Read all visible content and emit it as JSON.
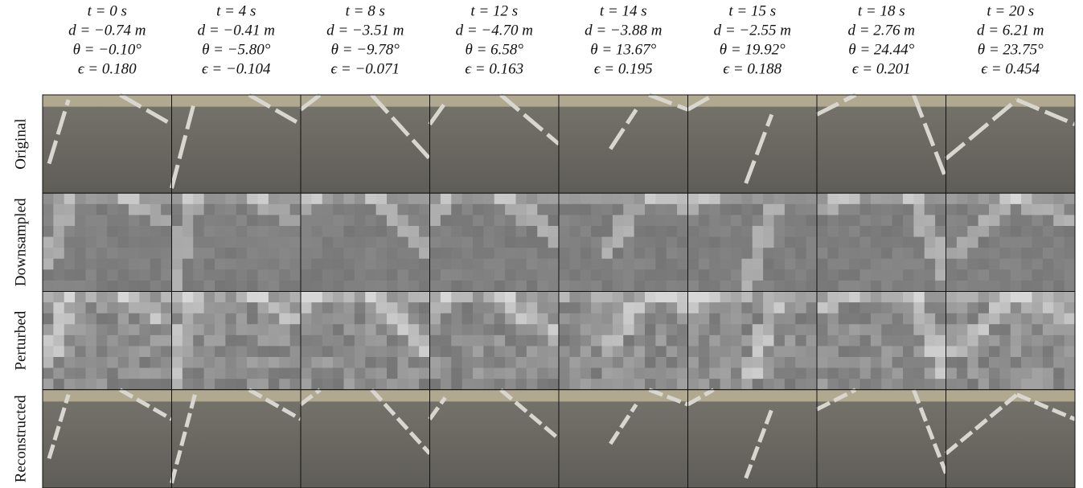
{
  "columns": [
    {
      "t": "t = 0 s",
      "d": "d = −0.74 m",
      "theta": "θ = −0.10°",
      "epsilon": "ϵ = 0.180"
    },
    {
      "t": "t = 4 s",
      "d": "d = −0.41 m",
      "theta": "θ = −5.80°",
      "epsilon": "ϵ = −0.104"
    },
    {
      "t": "t = 8 s",
      "d": "d = −3.51 m",
      "theta": "θ = −9.78°",
      "epsilon": "ϵ = −0.071"
    },
    {
      "t": "t = 12 s",
      "d": "d = −4.70 m",
      "theta": "θ = 6.58°",
      "epsilon": "ϵ = 0.163"
    },
    {
      "t": "t = 14 s",
      "d": "d = −3.88 m",
      "theta": "θ = 13.67°",
      "epsilon": "ϵ = 0.195"
    },
    {
      "t": "t = 15 s",
      "d": "d = −2.55 m",
      "theta": "θ = 19.92°",
      "epsilon": "ϵ = 0.188"
    },
    {
      "t": "t = 18 s",
      "d": "d = 2.76 m",
      "theta": "θ = 24.44°",
      "epsilon": "ϵ = 0.201"
    },
    {
      "t": "t = 20 s",
      "d": "d = 6.21 m",
      "theta": "θ = 23.75°",
      "epsilon": "ϵ = 0.454"
    }
  ],
  "rows": [
    "Original",
    "Downsampled",
    "Perturbed",
    "Reconstructed"
  ]
}
